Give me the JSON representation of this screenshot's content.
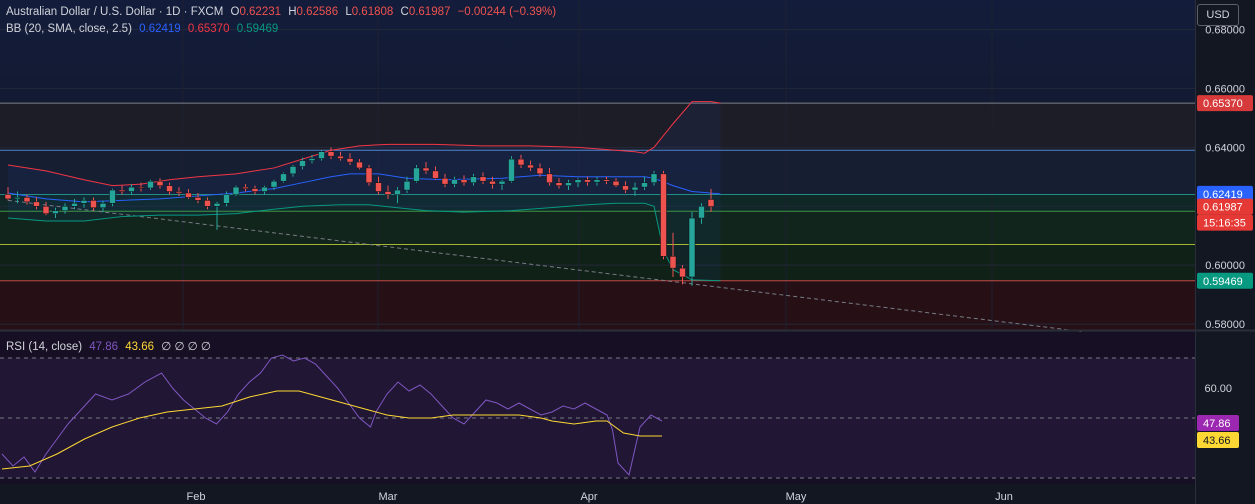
{
  "header": {
    "symbol": "Australian Dollar / U.S. Dollar · 1D · FXCM",
    "open_label": "O",
    "open": "0.62231",
    "high_label": "H",
    "high": "0.62586",
    "low_label": "L",
    "low": "0.61808",
    "close_label": "C",
    "close": "0.61987",
    "change": "−0.00244 (−0.39%)"
  },
  "bb_legend": {
    "name": "BB (20, SMA, close, 2.5)",
    "basis": "0.62419",
    "upper": "0.65370",
    "lower": "0.59469"
  },
  "rsi_legend": {
    "name": "RSI (14, close)",
    "rsi": "47.86",
    "ma": "43.66",
    "extra": "∅ ∅ ∅ ∅"
  },
  "currency_button": "USD",
  "colors": {
    "bg": "#131722",
    "up": "#26a69a",
    "down": "#ef5350",
    "bb_basis": "#2962ff",
    "bb_upper": "#f23645",
    "bb_lower": "#089981",
    "rsi": "#7e57c2",
    "rsi_ma": "#fdd835",
    "rsi_badge": "#9c27b0",
    "price_badge": "#e53935",
    "trendline": "#787b86"
  },
  "price_axis": {
    "ticks": [
      "0.68000",
      "0.66000",
      "0.64000",
      "0.62000",
      "0.60000",
      "0.58000"
    ]
  },
  "price_badges": [
    {
      "value": "0.65370",
      "kind": "upper"
    },
    {
      "value": "0.62419",
      "kind": "basis"
    },
    {
      "value": "0.61987",
      "kind": "price"
    },
    {
      "value": "15:16:35",
      "kind": "countdown"
    },
    {
      "value": "0.59469",
      "kind": "lower"
    }
  ],
  "rsi_axis": {
    "ticks": [
      "60.00"
    ],
    "badges": [
      "47.86",
      "43.66"
    ]
  },
  "time_axis": [
    "Feb",
    "Mar",
    "Apr",
    "May",
    "Jun"
  ],
  "chart_data": {
    "type": "candlestick",
    "price_ylim": [
      0.578,
      0.69
    ],
    "horizontal_levels": [
      0.655,
      0.639,
      0.624,
      0.6183,
      0.607,
      0.5947
    ],
    "trendline": {
      "from": [
        0,
        0.622
      ],
      "to": [
        113,
        0.5775
      ]
    },
    "candles": [
      [
        0.624,
        0.6265,
        0.622,
        0.6225
      ],
      [
        0.6225,
        0.625,
        0.621,
        0.623
      ],
      [
        0.623,
        0.624,
        0.6205,
        0.6215
      ],
      [
        0.6215,
        0.623,
        0.619,
        0.62
      ],
      [
        0.62,
        0.6215,
        0.617,
        0.6175
      ],
      [
        0.6175,
        0.6195,
        0.616,
        0.6185
      ],
      [
        0.6185,
        0.621,
        0.6175,
        0.62
      ],
      [
        0.62,
        0.6225,
        0.619,
        0.621
      ],
      [
        0.621,
        0.623,
        0.6195,
        0.622
      ],
      [
        0.622,
        0.623,
        0.6185,
        0.6195
      ],
      [
        0.6195,
        0.622,
        0.618,
        0.621
      ],
      [
        0.621,
        0.626,
        0.62,
        0.6255
      ],
      [
        0.6255,
        0.627,
        0.624,
        0.625
      ],
      [
        0.625,
        0.6275,
        0.624,
        0.6265
      ],
      [
        0.6265,
        0.628,
        0.625,
        0.6262
      ],
      [
        0.6262,
        0.629,
        0.6255,
        0.6285
      ],
      [
        0.6285,
        0.6295,
        0.626,
        0.627
      ],
      [
        0.627,
        0.628,
        0.624,
        0.625
      ],
      [
        0.625,
        0.6265,
        0.6235,
        0.6245
      ],
      [
        0.6245,
        0.6258,
        0.6225,
        0.623
      ],
      [
        0.623,
        0.6245,
        0.621,
        0.622
      ],
      [
        0.622,
        0.623,
        0.619,
        0.62
      ],
      [
        0.62,
        0.6215,
        0.612,
        0.621
      ],
      [
        0.621,
        0.625,
        0.62,
        0.624
      ],
      [
        0.624,
        0.627,
        0.6235,
        0.6265
      ],
      [
        0.6265,
        0.6275,
        0.625,
        0.626
      ],
      [
        0.626,
        0.627,
        0.624,
        0.625
      ],
      [
        0.625,
        0.627,
        0.624,
        0.6265
      ],
      [
        0.6265,
        0.629,
        0.6255,
        0.6285
      ],
      [
        0.6285,
        0.6315,
        0.628,
        0.631
      ],
      [
        0.631,
        0.634,
        0.63,
        0.6335
      ],
      [
        0.6335,
        0.6365,
        0.6325,
        0.6355
      ],
      [
        0.6355,
        0.6375,
        0.6345,
        0.6362
      ],
      [
        0.6362,
        0.639,
        0.6355,
        0.6385
      ],
      [
        0.6385,
        0.64,
        0.636,
        0.637
      ],
      [
        0.637,
        0.6385,
        0.6355,
        0.6362
      ],
      [
        0.6362,
        0.638,
        0.634,
        0.635
      ],
      [
        0.635,
        0.636,
        0.6325,
        0.633
      ],
      [
        0.633,
        0.634,
        0.627,
        0.628
      ],
      [
        0.628,
        0.63,
        0.624,
        0.625
      ],
      [
        0.625,
        0.627,
        0.6225,
        0.624
      ],
      [
        0.624,
        0.6265,
        0.621,
        0.6255
      ],
      [
        0.6255,
        0.63,
        0.6245,
        0.6285
      ],
      [
        0.6285,
        0.634,
        0.628,
        0.633
      ],
      [
        0.633,
        0.635,
        0.631,
        0.632
      ],
      [
        0.632,
        0.6335,
        0.629,
        0.6295
      ],
      [
        0.6295,
        0.631,
        0.6265,
        0.6275
      ],
      [
        0.6275,
        0.63,
        0.6265,
        0.629
      ],
      [
        0.629,
        0.6305,
        0.627,
        0.628
      ],
      [
        0.628,
        0.631,
        0.627,
        0.63
      ],
      [
        0.63,
        0.6315,
        0.6275,
        0.6285
      ],
      [
        0.6285,
        0.63,
        0.626,
        0.6275
      ],
      [
        0.6275,
        0.629,
        0.6255,
        0.6285
      ],
      [
        0.6285,
        0.637,
        0.628,
        0.636
      ],
      [
        0.636,
        0.6375,
        0.633,
        0.634
      ],
      [
        0.634,
        0.6355,
        0.632,
        0.633
      ],
      [
        0.633,
        0.6345,
        0.63,
        0.631
      ],
      [
        0.631,
        0.633,
        0.627,
        0.628
      ],
      [
        0.628,
        0.6295,
        0.626,
        0.627
      ],
      [
        0.627,
        0.629,
        0.6255,
        0.628
      ],
      [
        0.628,
        0.6295,
        0.6265,
        0.629
      ],
      [
        0.629,
        0.63,
        0.627,
        0.6282
      ],
      [
        0.6282,
        0.63,
        0.627,
        0.629
      ],
      [
        0.629,
        0.63,
        0.6275,
        0.6285
      ],
      [
        0.6285,
        0.6295,
        0.6265,
        0.627
      ],
      [
        0.627,
        0.6285,
        0.6245,
        0.6255
      ],
      [
        0.6255,
        0.628,
        0.6235,
        0.6265
      ],
      [
        0.6265,
        0.63,
        0.6255,
        0.628
      ],
      [
        0.628,
        0.632,
        0.627,
        0.631
      ],
      [
        0.631,
        0.632,
        0.602,
        0.603
      ],
      [
        0.603,
        0.611,
        0.596,
        0.599
      ],
      [
        0.599,
        0.6,
        0.5935,
        0.596
      ],
      [
        0.596,
        0.618,
        0.593,
        0.616
      ],
      [
        0.616,
        0.621,
        0.614,
        0.62
      ],
      [
        0.6223,
        0.6259,
        0.6181,
        0.6199
      ]
    ],
    "bb_upper": [
      [
        0,
        0.634
      ],
      [
        4,
        0.632
      ],
      [
        8,
        0.629
      ],
      [
        11,
        0.627
      ],
      [
        14,
        0.6275
      ],
      [
        17,
        0.629
      ],
      [
        20,
        0.63
      ],
      [
        24,
        0.631
      ],
      [
        28,
        0.633
      ],
      [
        31,
        0.636
      ],
      [
        34,
        0.639
      ],
      [
        37,
        0.6405
      ],
      [
        40,
        0.641
      ],
      [
        45,
        0.641
      ],
      [
        50,
        0.6405
      ],
      [
        55,
        0.6405
      ],
      [
        60,
        0.64
      ],
      [
        64,
        0.639
      ],
      [
        66,
        0.6385
      ],
      [
        67,
        0.638
      ],
      [
        68,
        0.64
      ],
      [
        70,
        0.648
      ],
      [
        72,
        0.6555
      ],
      [
        74,
        0.6555
      ],
      [
        75,
        0.655
      ]
    ],
    "bb_basis": [
      [
        0,
        0.6245
      ],
      [
        4,
        0.6225
      ],
      [
        8,
        0.6215
      ],
      [
        12,
        0.622
      ],
      [
        16,
        0.6225
      ],
      [
        20,
        0.6235
      ],
      [
        24,
        0.6245
      ],
      [
        28,
        0.626
      ],
      [
        31,
        0.628
      ],
      [
        34,
        0.63
      ],
      [
        36,
        0.631
      ],
      [
        39,
        0.631
      ],
      [
        42,
        0.6295
      ],
      [
        46,
        0.629
      ],
      [
        52,
        0.6295
      ],
      [
        56,
        0.6305
      ],
      [
        60,
        0.63
      ],
      [
        64,
        0.63
      ],
      [
        67,
        0.63
      ],
      [
        68,
        0.6295
      ],
      [
        70,
        0.627
      ],
      [
        72,
        0.625
      ],
      [
        75,
        0.6242
      ]
    ],
    "bb_lower": [
      [
        0,
        0.616
      ],
      [
        4,
        0.615
      ],
      [
        8,
        0.615
      ],
      [
        12,
        0.6165
      ],
      [
        16,
        0.617
      ],
      [
        20,
        0.617
      ],
      [
        24,
        0.6175
      ],
      [
        28,
        0.619
      ],
      [
        31,
        0.62
      ],
      [
        35,
        0.6205
      ],
      [
        38,
        0.6205
      ],
      [
        41,
        0.6195
      ],
      [
        44,
        0.6185
      ],
      [
        48,
        0.618
      ],
      [
        53,
        0.6185
      ],
      [
        57,
        0.6195
      ],
      [
        61,
        0.6205
      ],
      [
        64,
        0.621
      ],
      [
        66,
        0.621
      ],
      [
        67,
        0.621
      ],
      [
        68,
        0.62
      ],
      [
        69,
        0.605
      ],
      [
        70,
        0.5985
      ],
      [
        72,
        0.595
      ],
      [
        75,
        0.5947
      ]
    ],
    "rsi_ylim": [
      28,
      78
    ],
    "rsi_levels": [
      70,
      50,
      30
    ],
    "rsi": [
      [
        0,
        38
      ],
      [
        2,
        34
      ],
      [
        4,
        37
      ],
      [
        6,
        32
      ],
      [
        8,
        38
      ],
      [
        10,
        43
      ],
      [
        12,
        48
      ],
      [
        14,
        52
      ],
      [
        17,
        58
      ],
      [
        20,
        56
      ],
      [
        23,
        58
      ],
      [
        26,
        62
      ],
      [
        29,
        65
      ],
      [
        31,
        60
      ],
      [
        33,
        56
      ],
      [
        35,
        53
      ],
      [
        37,
        50
      ],
      [
        39,
        48
      ],
      [
        41,
        52
      ],
      [
        43,
        58
      ],
      [
        45,
        62
      ],
      [
        47,
        65
      ],
      [
        49,
        70
      ],
      [
        51,
        71
      ],
      [
        53,
        69
      ],
      [
        55,
        70
      ],
      [
        57,
        68
      ],
      [
        59,
        64
      ],
      [
        61,
        60
      ],
      [
        63,
        55
      ],
      [
        65,
        50
      ],
      [
        67,
        47
      ],
      [
        68,
        52
      ],
      [
        70,
        58
      ],
      [
        72,
        62
      ],
      [
        74,
        59
      ],
      [
        76,
        61
      ],
      [
        78,
        58
      ],
      [
        80,
        54
      ],
      [
        82,
        50
      ],
      [
        84,
        48
      ],
      [
        86,
        52
      ],
      [
        88,
        56
      ],
      [
        90,
        55
      ],
      [
        92,
        53
      ],
      [
        94,
        55
      ],
      [
        96,
        53
      ],
      [
        98,
        51
      ],
      [
        100,
        52
      ],
      [
        102,
        54
      ],
      [
        104,
        53
      ],
      [
        106,
        55
      ],
      [
        108,
        53
      ],
      [
        110,
        51
      ],
      [
        111,
        46
      ],
      [
        112,
        35
      ],
      [
        113,
        33
      ],
      [
        114,
        31
      ],
      [
        116,
        47
      ],
      [
        118,
        51
      ],
      [
        120,
        49
      ]
    ],
    "rsi_ma": [
      [
        0,
        33
      ],
      [
        5,
        34
      ],
      [
        10,
        38
      ],
      [
        15,
        43
      ],
      [
        20,
        47
      ],
      [
        25,
        50
      ],
      [
        30,
        52
      ],
      [
        35,
        53
      ],
      [
        40,
        54
      ],
      [
        45,
        57
      ],
      [
        50,
        59
      ],
      [
        54,
        59
      ],
      [
        58,
        57
      ],
      [
        62,
        55
      ],
      [
        66,
        53
      ],
      [
        70,
        51
      ],
      [
        74,
        50
      ],
      [
        78,
        50
      ],
      [
        82,
        51
      ],
      [
        86,
        51
      ],
      [
        90,
        51
      ],
      [
        94,
        51
      ],
      [
        98,
        50
      ],
      [
        100,
        49
      ],
      [
        104,
        48
      ],
      [
        108,
        49
      ],
      [
        110,
        49
      ],
      [
        113,
        45
      ],
      [
        116,
        44
      ],
      [
        120,
        44
      ]
    ]
  }
}
